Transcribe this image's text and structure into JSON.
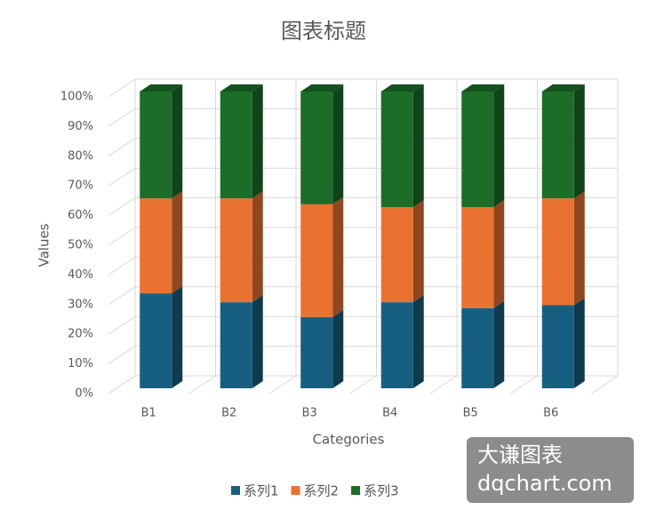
{
  "chart_data": {
    "type": "bar3d_stacked",
    "title": "图表标题",
    "x_label": "Categories",
    "y_label": "Values",
    "categories": [
      "B1",
      "B2",
      "B3",
      "B4",
      "B5",
      "B6"
    ],
    "series": [
      {
        "name": "系列1",
        "color": "#175f80",
        "values": [
          32,
          29,
          24,
          29,
          27,
          28
        ]
      },
      {
        "name": "系列2",
        "color": "#e97230",
        "values": [
          32,
          35,
          38,
          32,
          34,
          36
        ]
      },
      {
        "name": "系列3",
        "color": "#1b6d28",
        "values": [
          36,
          36,
          38,
          39,
          39,
          36
        ]
      }
    ],
    "ylim": [
      0,
      100
    ],
    "yticks": [
      {
        "value": 0,
        "label": "0%"
      },
      {
        "value": 10,
        "label": "10%"
      },
      {
        "value": 20,
        "label": "20%"
      },
      {
        "value": 30,
        "label": "30%"
      },
      {
        "value": 40,
        "label": "40%"
      },
      {
        "value": 50,
        "label": "50%"
      },
      {
        "value": 60,
        "label": "60%"
      },
      {
        "value": 70,
        "label": "70%"
      },
      {
        "value": 80,
        "label": "80%"
      },
      {
        "value": 90,
        "label": "90%"
      },
      {
        "value": 100,
        "label": "100%"
      }
    ],
    "grid": true,
    "legend": "bottom",
    "watermark": [
      "大谦图表",
      "dqchart.com"
    ]
  }
}
